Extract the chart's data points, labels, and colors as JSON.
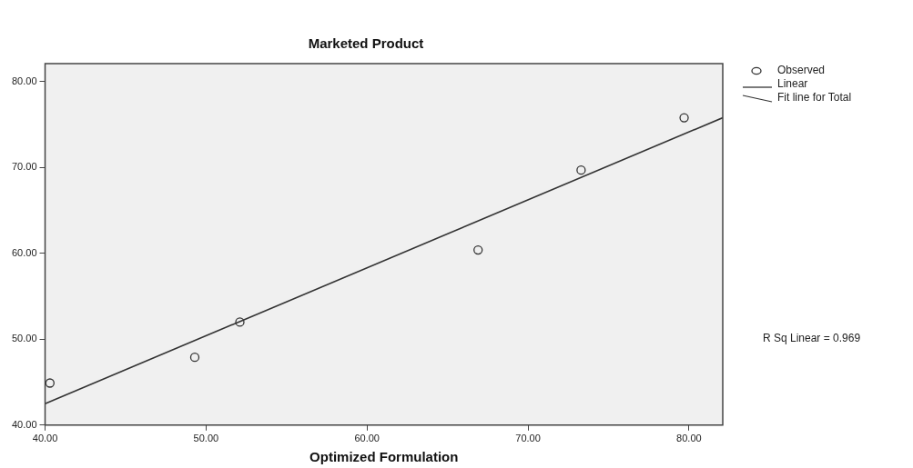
{
  "chart_data": {
    "type": "scatter",
    "title": "Marketed Product",
    "xlabel": "Optimized Formulation",
    "xlim": [
      40,
      82.1
    ],
    "xticks": [
      {
        "value": 40,
        "label": "40.00"
      },
      {
        "value": 50,
        "label": "50.00"
      },
      {
        "value": 60,
        "label": "60.00"
      },
      {
        "value": 70,
        "label": "70.00"
      },
      {
        "value": 80,
        "label": "80.00"
      }
    ],
    "ylim": [
      40,
      82.1
    ],
    "yticks": [
      {
        "value": 40,
        "label": "40.00"
      },
      {
        "value": 50,
        "label": "50.00"
      },
      {
        "value": 60,
        "label": "60.00"
      },
      {
        "value": 70,
        "label": "70.00"
      },
      {
        "value": 80,
        "label": "80.00"
      }
    ],
    "series": [
      {
        "name": "Observed",
        "color": "#333333",
        "marker": "circle",
        "x": [
          40.3,
          49.3,
          52.1,
          66.9,
          73.3,
          79.7
        ],
        "values": [
          44.9,
          47.9,
          52.0,
          60.4,
          69.7,
          75.8
        ]
      },
      {
        "name": "Linear",
        "type": "line",
        "color": "#333333",
        "marker": "none",
        "x": [
          40,
          82.1
        ],
        "values": [
          42.5,
          75.8
        ]
      }
    ],
    "annotations": [
      "Fit line for Total",
      "R Sq Linear = 0.969"
    ],
    "legend": "top right",
    "grid": false
  }
}
